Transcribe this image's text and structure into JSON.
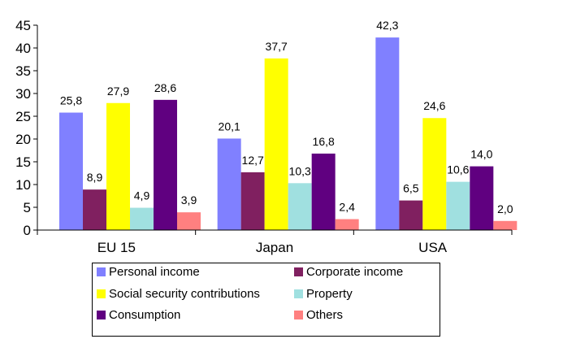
{
  "chart_data": {
    "type": "bar",
    "title": "",
    "xlabel": "",
    "ylabel": "",
    "ylim": [
      0,
      45
    ],
    "yticks": [
      "0",
      "5",
      "10",
      "15",
      "20",
      "25",
      "30",
      "35",
      "40",
      "45"
    ],
    "categories": [
      "EU 15",
      "Japan",
      "USA"
    ],
    "grid": false,
    "legend_position": "bottom",
    "series": [
      {
        "name": "Personal income",
        "color": "#8080FF",
        "values": [
          25.8,
          20.1,
          42.3
        ],
        "labels": [
          "25,8",
          "20,1",
          "42,3"
        ]
      },
      {
        "name": "Corporate income",
        "color": "#802060",
        "values": [
          8.9,
          12.7,
          6.5
        ],
        "labels": [
          "8,9",
          "12,7",
          "6,5"
        ]
      },
      {
        "name": "Social security contributions",
        "color": "#FFFF00",
        "values": [
          27.9,
          37.7,
          24.6
        ],
        "labels": [
          "27,9",
          "37,7",
          "24,6"
        ]
      },
      {
        "name": "Property",
        "color": "#A0E0E0",
        "values": [
          4.9,
          10.3,
          10.6
        ],
        "labels": [
          "4,9",
          "10,3",
          "10,6"
        ]
      },
      {
        "name": "Consumption",
        "color": "#600080",
        "values": [
          28.6,
          16.8,
          14.0
        ],
        "labels": [
          "28,6",
          "16,8",
          "14,0"
        ]
      },
      {
        "name": "Others",
        "color": "#FF8080",
        "values": [
          3.9,
          2.4,
          2.0
        ],
        "labels": [
          "3,9",
          "2,4",
          "2,0"
        ]
      }
    ]
  }
}
